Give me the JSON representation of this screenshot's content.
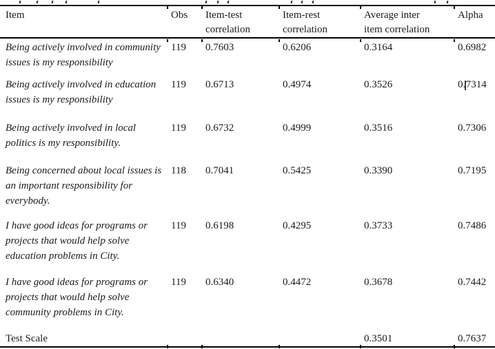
{
  "colors": {
    "background": "#ffffff",
    "text": "#1a1a1a",
    "rule": "#000000"
  },
  "table": {
    "headers": [
      {
        "lines": [
          "Item"
        ]
      },
      {
        "lines": [
          "Obs"
        ]
      },
      {
        "lines": [
          "Item-test",
          "correlation"
        ]
      },
      {
        "lines": [
          "Item-rest",
          "correlation"
        ]
      },
      {
        "lines": [
          "Average inter",
          "item correlation"
        ]
      },
      {
        "lines": [
          "Alpha"
        ]
      }
    ],
    "rows": [
      {
        "item_lines": [
          "Being actively involved in community",
          "issues is my responsibility"
        ],
        "obs": "119",
        "item_test": "0.7603",
        "item_rest": "0.6206",
        "avg_inter_item": "0.3164",
        "alpha": "0.6982"
      },
      {
        "item_lines": [
          "Being actively involved in education",
          "issues is my responsibility"
        ],
        "obs": "119",
        "item_test": "0.6713",
        "item_rest": "0.4974",
        "avg_inter_item": "0.3526",
        "alpha_pre": "0.",
        "alpha_post": "7314",
        "has_text_cursor": true
      },
      {
        "item_lines": [
          "Being actively involved in local",
          "politics is my responsibility."
        ],
        "obs": "119",
        "item_test": "0.6732",
        "item_rest": "0.4999",
        "avg_inter_item": "0.3516",
        "alpha": "0.7306"
      },
      {
        "item_lines": [
          "Being concerned about local issues is",
          "an important responsibility for",
          "everybody."
        ],
        "obs": "118",
        "item_test": "0.7041",
        "item_rest": "0.5425",
        "avg_inter_item": "0.3390",
        "alpha": "0.7195"
      },
      {
        "item_lines": [
          "I have good ideas for programs or",
          "projects that would help solve",
          "education problems in City."
        ],
        "obs": "119",
        "item_test": "0.6198",
        "item_rest": "0.4295",
        "avg_inter_item": "0.3733",
        "alpha": "0.7486"
      },
      {
        "item_lines": [
          "I have good ideas for programs or",
          "projects that would help solve",
          "community problems in City."
        ],
        "obs": "119",
        "item_test": "0.6340",
        "item_rest": "0.4472",
        "avg_inter_item": "0.3678",
        "alpha": "0.7442"
      },
      {
        "item_lines": [
          "Test Scale"
        ],
        "obs": "",
        "item_test": "",
        "item_rest": "",
        "avg_inter_item": "0.3501",
        "alpha": "0.7637"
      }
    ]
  }
}
